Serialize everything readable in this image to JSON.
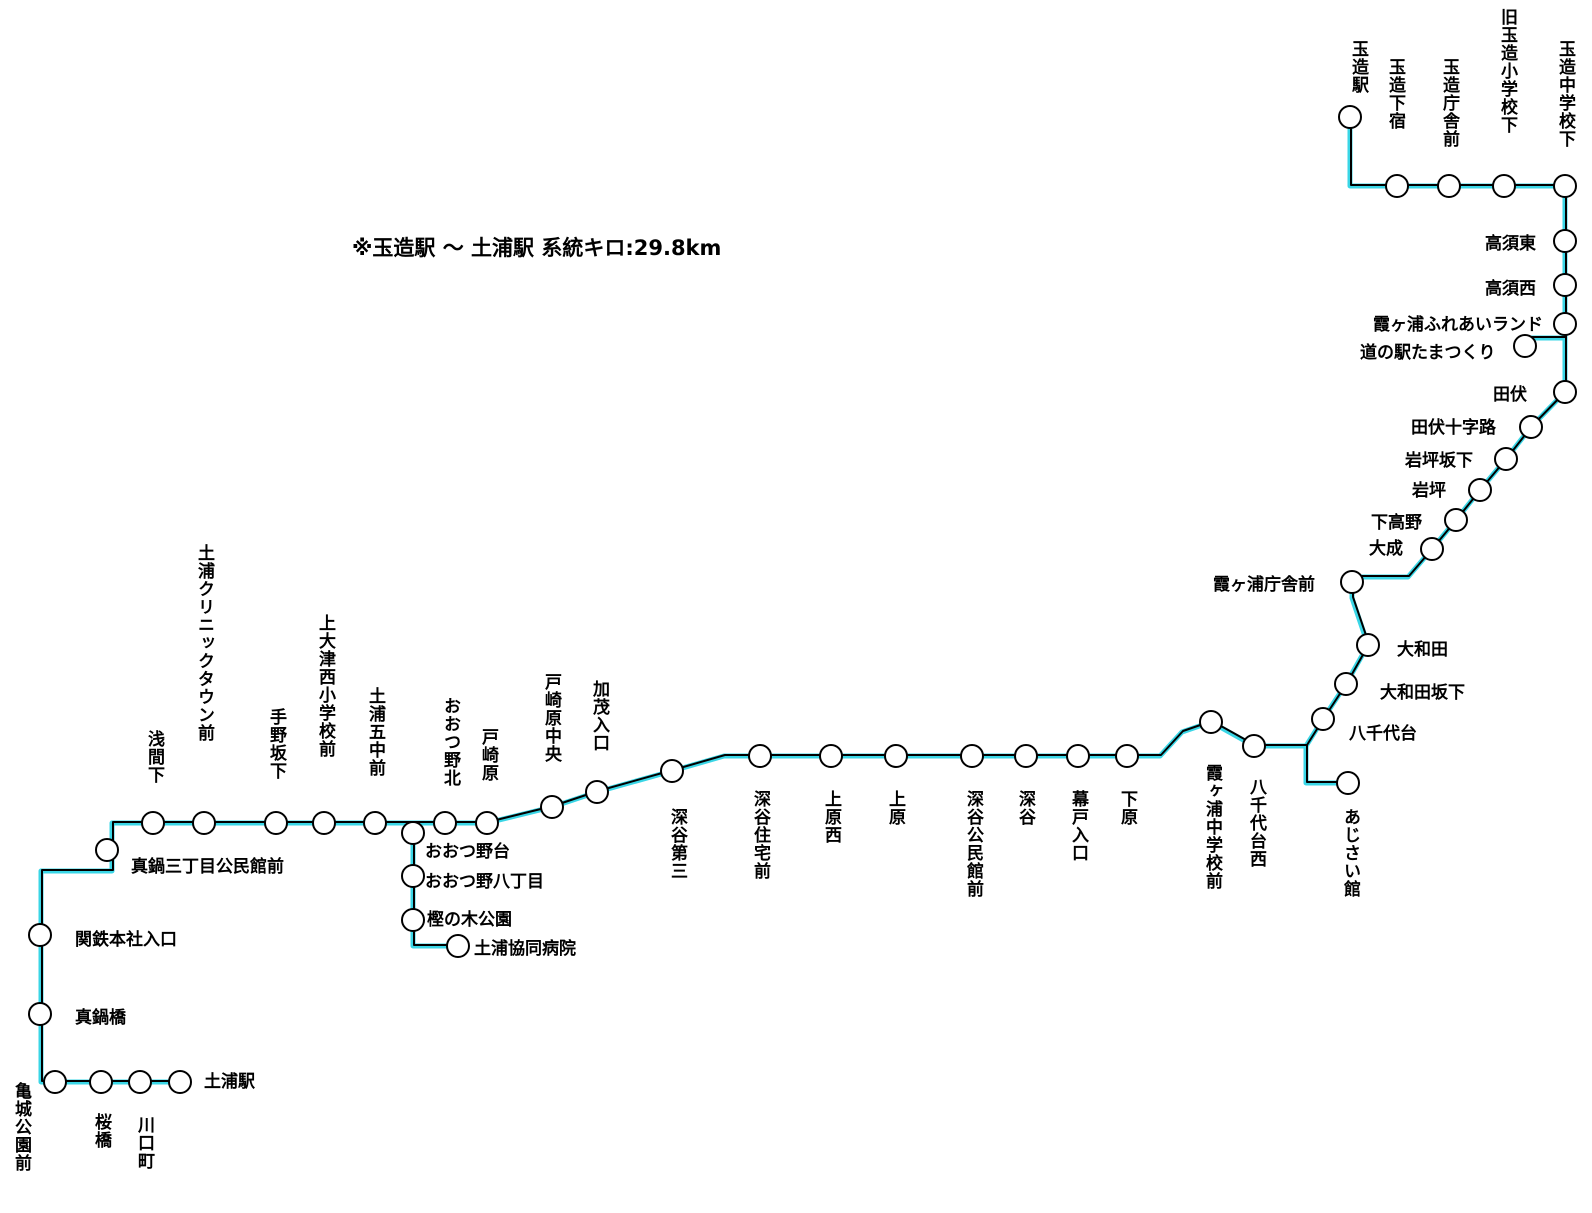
{
  "route": {
    "note": "※玉造駅 〜 土浦駅 系統キロ:29.8km",
    "colors": {
      "line": "#000000",
      "accent": "#3ad6e6",
      "stop_fill": "#ffffff",
      "text": "#000000"
    }
  },
  "stops": [
    "玉造駅",
    "玉造下宿",
    "玉造庁舎前",
    "旧玉造小学校下",
    "玉造中学校下",
    "高須東",
    "高須西",
    "霞ヶ浦ふれあいランド",
    "道の駅たまつくり",
    "田伏",
    "田伏十字路",
    "岩坪坂下",
    "岩坪",
    "下高野",
    "大成",
    "霞ヶ浦庁舎前",
    "大和田",
    "大和田坂下",
    "八千代台",
    "あじさい館",
    "八千代台西",
    "霞ヶ浦中学校前",
    "下原",
    "幕戸入口",
    "深谷",
    "深谷公民館前",
    "上原",
    "上原西",
    "深谷住宅前",
    "深谷第三",
    "加茂入口",
    "戸崎原中央",
    "戸崎原",
    "おおつ野北",
    "おおつ野台",
    "おおつ野八丁目",
    "樫の木公園",
    "土浦協同病院",
    "土浦五中前",
    "上大津西小学校前",
    "手野坂下",
    "土浦クリニックタウン前",
    "浅間下",
    "真鍋三丁目公民館前",
    "関鉄本社入口",
    "真鍋橋",
    "亀城公園前",
    "桜橋",
    "川口町",
    "土浦駅"
  ]
}
